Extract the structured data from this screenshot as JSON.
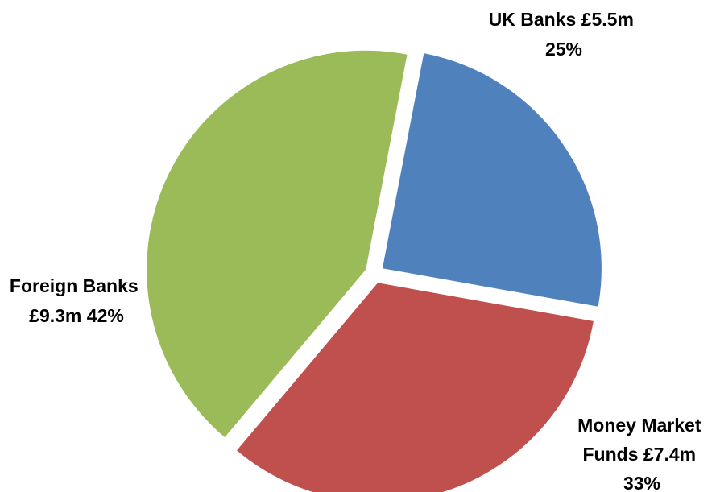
{
  "chart_data": {
    "type": "pie",
    "title": "",
    "slices": [
      {
        "id": "uk",
        "label": "UK Banks",
        "value": 5.5,
        "value_text": "£5.5m",
        "percent": 25,
        "percent_text": "25%",
        "color": "#4f81bd",
        "label_lines": [
          "UK Banks £5.5m",
          "25%"
        ]
      },
      {
        "id": "mmf",
        "label": "Money Market Funds",
        "value": 7.4,
        "value_text": "£7.4m",
        "percent": 33,
        "percent_text": "33%",
        "color": "#c0504d",
        "label_lines": [
          "Money Market",
          "Funds £7.4m",
          "33%"
        ]
      },
      {
        "id": "foreign",
        "label": "Foreign Banks",
        "value": 9.3,
        "value_text": "£9.3m",
        "percent": 42,
        "percent_text": "42%",
        "color": "#9bbb59",
        "label_lines": [
          "Foreign Banks",
          "£9.3m 42%"
        ]
      }
    ],
    "exploded": true,
    "legend": "none",
    "start": "top"
  }
}
